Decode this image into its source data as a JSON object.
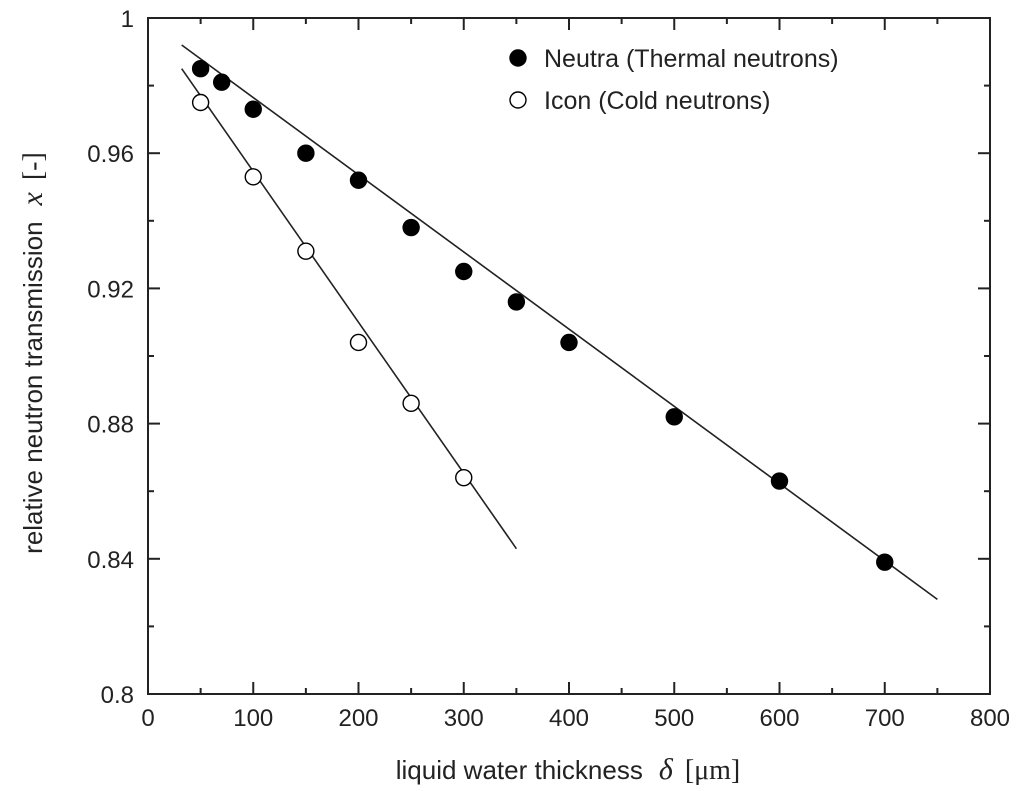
{
  "chart_data": {
    "type": "scatter",
    "xlim": [
      0,
      800
    ],
    "ylim": [
      0.8,
      1.0
    ],
    "x_ticks": [
      0,
      100,
      200,
      300,
      400,
      500,
      600,
      700,
      800
    ],
    "y_ticks": [
      0.8,
      0.84,
      0.88,
      0.92,
      0.96,
      1.0
    ],
    "x_tick_labels": [
      "0",
      "100",
      "200",
      "300",
      "400",
      "500",
      "600",
      "700",
      "800"
    ],
    "y_tick_labels": [
      "0.8",
      "0.84",
      "0.88",
      "0.92",
      "0.96",
      "1"
    ],
    "xlabel": {
      "text": "liquid water thickness",
      "symbol": "δ",
      "unit": "[μm]"
    },
    "ylabel": {
      "text": "relative neutron transmission",
      "symbol": "x",
      "unit": "[-]"
    },
    "grid": false,
    "legend_position": "top-right",
    "series": [
      {
        "name": "Neutra (Thermal neutrons)",
        "marker": "filled-circle",
        "x": [
          50,
          70,
          100,
          150,
          200,
          250,
          300,
          350,
          400,
          500,
          600,
          700
        ],
        "y": [
          0.985,
          0.981,
          0.973,
          0.96,
          0.952,
          0.938,
          0.925,
          0.916,
          0.904,
          0.882,
          0.863,
          0.839
        ],
        "fit": {
          "x": [
            32,
            750
          ],
          "y": [
            0.992,
            0.828
          ]
        }
      },
      {
        "name": "Icon (Cold neutrons)",
        "marker": "open-circle",
        "x": [
          50,
          100,
          150,
          200,
          250,
          300
        ],
        "y": [
          0.975,
          0.953,
          0.931,
          0.904,
          0.886,
          0.864
        ],
        "fit": {
          "x": [
            32,
            350
          ],
          "y": [
            0.985,
            0.843
          ]
        }
      }
    ]
  }
}
